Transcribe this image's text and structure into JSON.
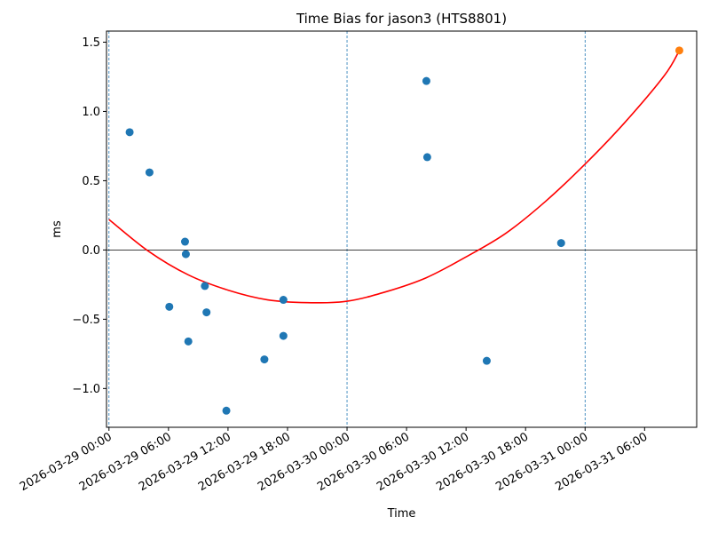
{
  "chart_data": {
    "type": "scatter",
    "title": "Time Bias for jason3 (HTS8801)",
    "xlabel": "Time",
    "ylabel": "ms",
    "x_unit": "datetime",
    "xlim": [
      "2026-03-28 23:45",
      "2026-03-31 11:15"
    ],
    "ylim": [
      -1.28,
      1.58
    ],
    "x_ticks": [
      "2026-03-29 00:00",
      "2026-03-29 06:00",
      "2026-03-29 12:00",
      "2026-03-29 18:00",
      "2026-03-30 00:00",
      "2026-03-30 06:00",
      "2026-03-30 12:00",
      "2026-03-30 18:00",
      "2026-03-31 00:00",
      "2026-03-31 06:00"
    ],
    "y_ticks": [
      -1.0,
      -0.5,
      0.0,
      0.5,
      1.0,
      1.5
    ],
    "y_tick_labels": [
      "−1.0",
      "−0.5",
      "0.0",
      "0.5",
      "1.0",
      "1.5"
    ],
    "vertical_lines": [
      "2026-03-29 00:00",
      "2026-03-30 00:00",
      "2026-03-31 00:00"
    ],
    "horizontal_line": 0.0,
    "series": [
      {
        "type": "scatter",
        "color": "#1f77b4",
        "points": [
          {
            "x": "2026-03-29 02:05",
            "y": 0.85
          },
          {
            "x": "2026-03-29 04:05",
            "y": 0.56
          },
          {
            "x": "2026-03-29 06:05",
            "y": -0.41
          },
          {
            "x": "2026-03-29 07:40",
            "y": 0.06
          },
          {
            "x": "2026-03-29 07:45",
            "y": -0.03
          },
          {
            "x": "2026-03-29 08:00",
            "y": -0.66
          },
          {
            "x": "2026-03-29 09:40",
            "y": -0.26
          },
          {
            "x": "2026-03-29 09:50",
            "y": -0.45
          },
          {
            "x": "2026-03-29 11:50",
            "y": -1.16
          },
          {
            "x": "2026-03-29 15:40",
            "y": -0.79
          },
          {
            "x": "2026-03-29 17:35",
            "y": -0.36
          },
          {
            "x": "2026-03-29 17:35",
            "y": -0.62
          },
          {
            "x": "2026-03-30 08:00",
            "y": 1.22
          },
          {
            "x": "2026-03-30 08:05",
            "y": 0.67
          },
          {
            "x": "2026-03-30 14:05",
            "y": -0.8
          },
          {
            "x": "2026-03-30 21:35",
            "y": 0.05
          }
        ]
      },
      {
        "type": "scatter",
        "color": "#ff7f0e",
        "points": [
          {
            "x": "2026-03-31 09:30",
            "y": 1.44
          }
        ]
      },
      {
        "type": "line",
        "color": "#ff0000",
        "points": [
          {
            "x": "2026-03-29 00:00",
            "y": 0.22
          },
          {
            "x": "2026-03-29 04:00",
            "y": -0.01
          },
          {
            "x": "2026-03-29 08:00",
            "y": -0.18
          },
          {
            "x": "2026-03-29 12:00",
            "y": -0.29
          },
          {
            "x": "2026-03-29 16:00",
            "y": -0.36
          },
          {
            "x": "2026-03-29 20:00",
            "y": -0.38
          },
          {
            "x": "2026-03-30 00:00",
            "y": -0.37
          },
          {
            "x": "2026-03-30 04:00",
            "y": -0.3
          },
          {
            "x": "2026-03-30 08:00",
            "y": -0.2
          },
          {
            "x": "2026-03-30 12:00",
            "y": -0.05
          },
          {
            "x": "2026-03-30 16:00",
            "y": 0.12
          },
          {
            "x": "2026-03-30 20:00",
            "y": 0.35
          },
          {
            "x": "2026-03-31 00:00",
            "y": 0.62
          },
          {
            "x": "2026-03-31 04:00",
            "y": 0.92
          },
          {
            "x": "2026-03-31 08:00",
            "y": 1.26
          },
          {
            "x": "2026-03-31 09:30",
            "y": 1.44
          }
        ]
      }
    ],
    "grid": false,
    "legend": "none"
  }
}
